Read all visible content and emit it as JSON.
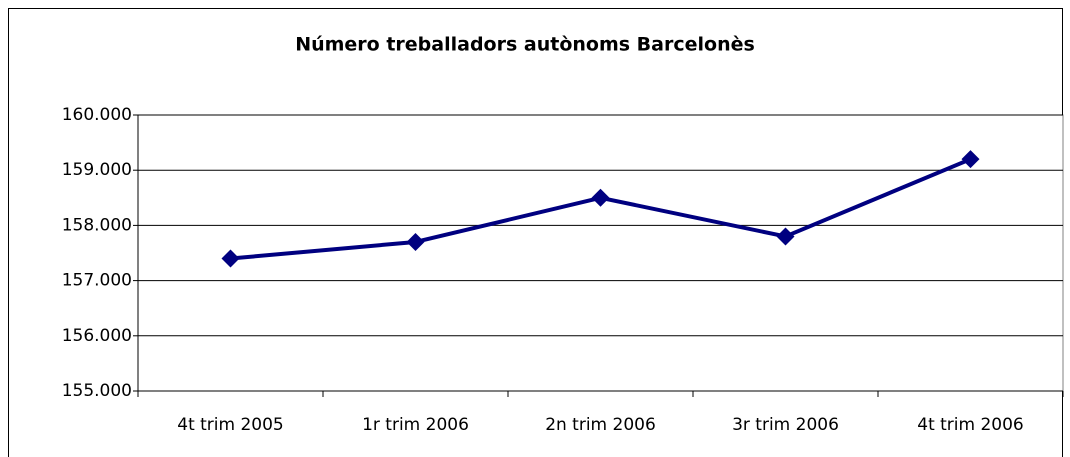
{
  "chart_data": {
    "type": "line",
    "title": "Número treballadors autònoms Barcelonès",
    "categories": [
      "4t trim 2005",
      "1r trim 2006",
      "2n trim 2006",
      "3r trim 2006",
      "4t trim 2006"
    ],
    "values": [
      157400,
      157700,
      158500,
      157800,
      159200
    ],
    "color": "#000080",
    "ylim": [
      155000,
      160000
    ],
    "yticks": [
      {
        "value": 155000,
        "label": "155.000"
      },
      {
        "value": 156000,
        "label": "156.000"
      },
      {
        "value": 157000,
        "label": "157.000"
      },
      {
        "value": 158000,
        "label": "158.000"
      },
      {
        "value": 159000,
        "label": "159.000"
      },
      {
        "value": 160000,
        "label": "160.000"
      }
    ],
    "grid": true
  }
}
